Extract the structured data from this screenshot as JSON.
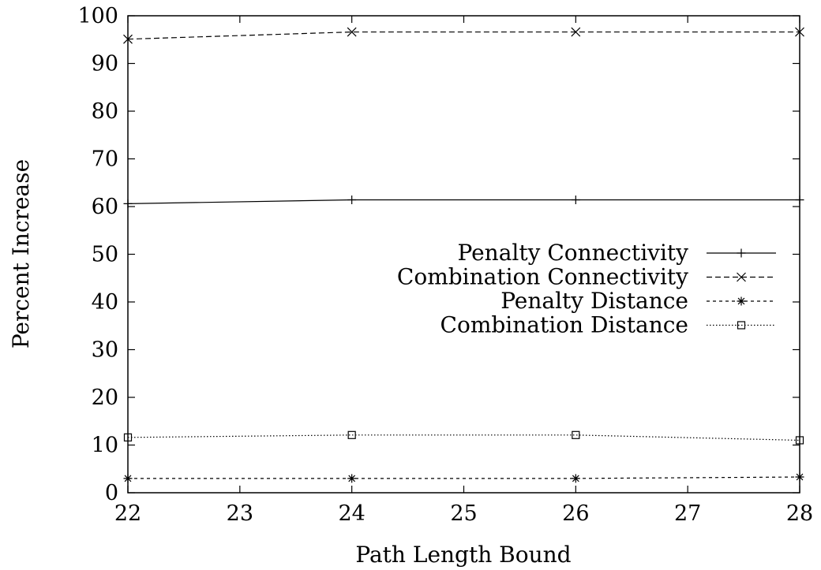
{
  "chart_data": {
    "type": "line",
    "title": "",
    "xlabel": "Path Length Bound",
    "ylabel": "Percent Increase",
    "xlim": [
      22,
      28
    ],
    "ylim": [
      0,
      100
    ],
    "xticks": [
      22,
      23,
      24,
      25,
      26,
      27,
      28
    ],
    "yticks": [
      0,
      10,
      20,
      30,
      40,
      50,
      60,
      70,
      80,
      90,
      100
    ],
    "grid": false,
    "legend_position": "center-right",
    "x": [
      22,
      24,
      26,
      28
    ],
    "series": [
      {
        "name": "Penalty Connectivity",
        "values": [
          60.6,
          61.4,
          61.4,
          61.4
        ],
        "line_style": "solid",
        "marker": "plus",
        "color": "#000000"
      },
      {
        "name": "Combination Connectivity",
        "values": [
          95.1,
          96.6,
          96.6,
          96.6
        ],
        "line_style": "dashed",
        "marker": "cross",
        "color": "#000000"
      },
      {
        "name": "Penalty Distance",
        "values": [
          3.0,
          3.0,
          3.0,
          3.3
        ],
        "line_style": "short-dashed",
        "marker": "asterisk",
        "color": "#000000"
      },
      {
        "name": "Combination Distance",
        "values": [
          11.6,
          12.1,
          12.1,
          11.0
        ],
        "line_style": "dotted",
        "marker": "square",
        "color": "#000000"
      }
    ]
  }
}
